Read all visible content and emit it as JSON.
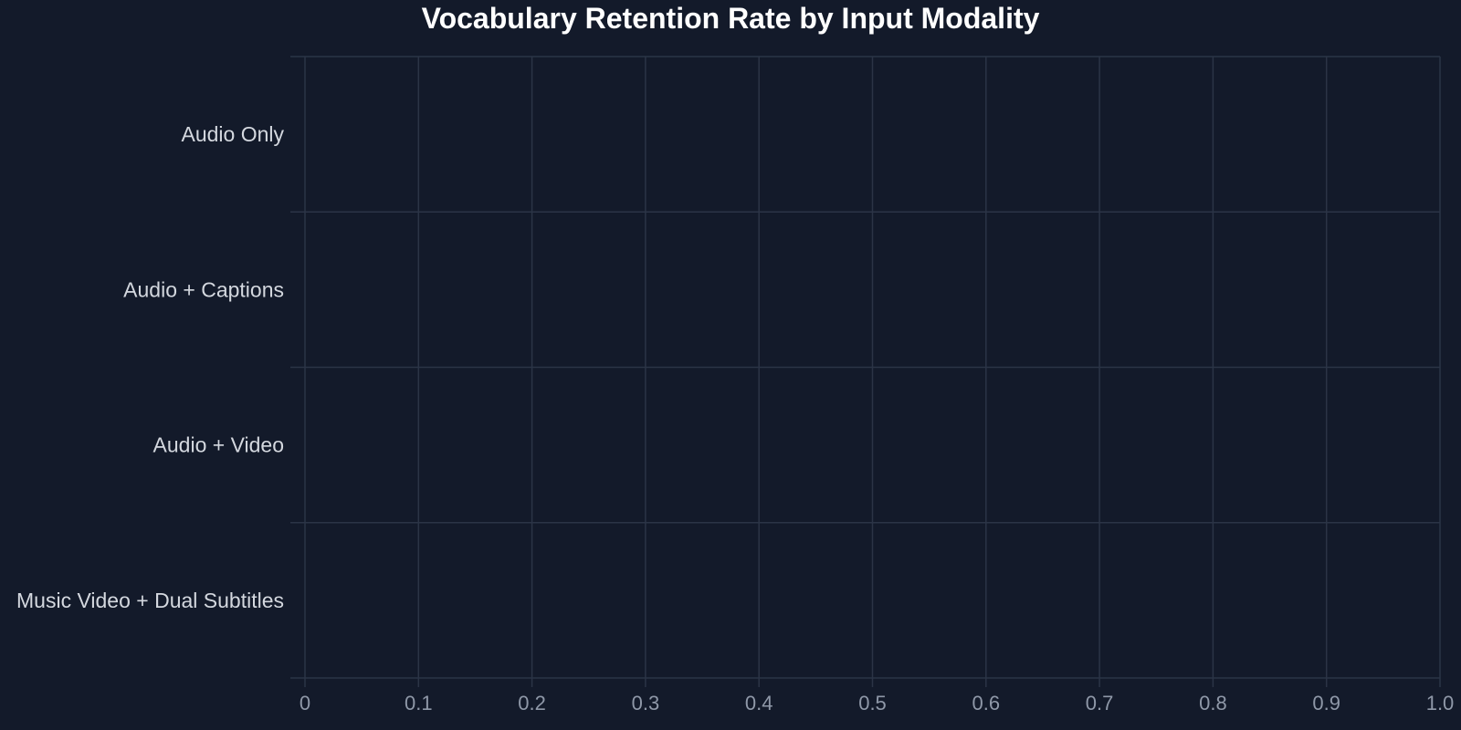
{
  "chart_data": {
    "type": "bar",
    "orientation": "horizontal",
    "title": "Vocabulary Retention Rate by Input Modality",
    "xlabel": "",
    "ylabel": "",
    "categories": [
      "Audio Only",
      "Audio + Captions",
      "Audio + Video",
      "Music Video + Dual Subtitles"
    ],
    "values": [
      null,
      null,
      null,
      null
    ],
    "xlim": [
      0,
      1.0
    ],
    "x_ticks": [
      "0",
      "0.1",
      "0.2",
      "0.3",
      "0.4",
      "0.5",
      "0.6",
      "0.7",
      "0.8",
      "0.9",
      "1.0"
    ],
    "grid": true,
    "legend": "none",
    "colors": {
      "background": "#131a2a",
      "grid": "#2b3446",
      "title": "#ffffff",
      "category_label": "#d4d8df",
      "tick_label": "#8f98a8"
    }
  }
}
